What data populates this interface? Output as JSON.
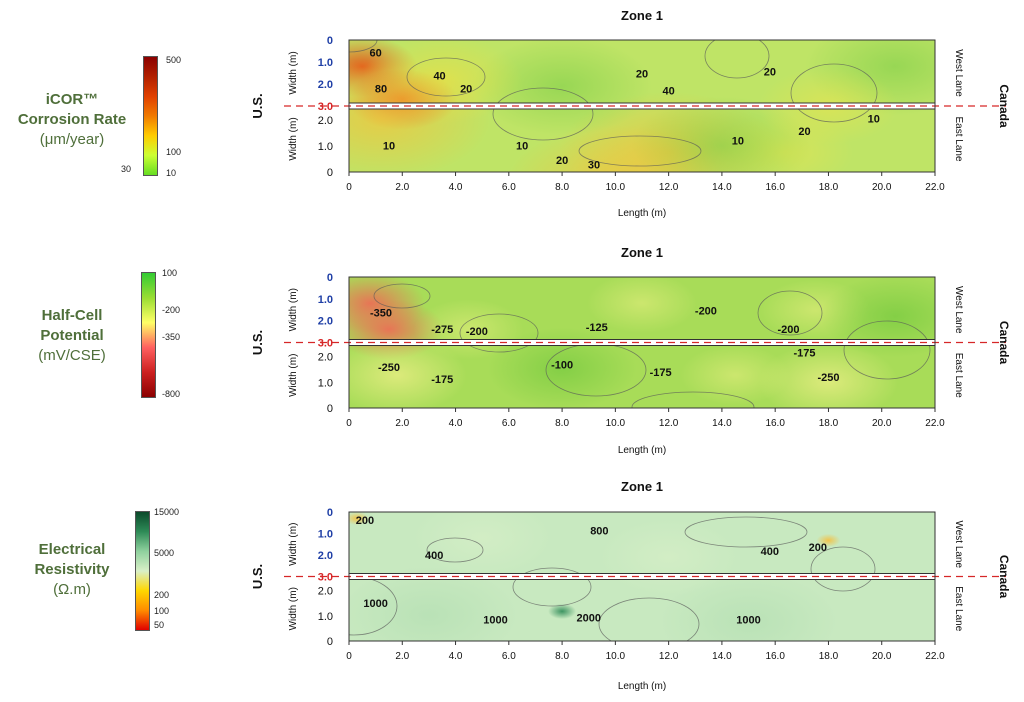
{
  "colors": {
    "legend_title": "#4f6f3a",
    "axis_blue": "#1f3fa6",
    "divider_red": "#d62728",
    "contour": "#5a5a5a"
  },
  "panels": [
    {
      "legend": {
        "title_lines": [
          "iCOR™",
          "Corrosion Rate"
        ],
        "unit": "(μm/year)",
        "ticks": [
          "500",
          "100",
          "10"
        ],
        "side_label": "30",
        "stops": [
          "#8b0000",
          "#b22000",
          "#e04000",
          "#f07a00",
          "#ffcc00",
          "#ccff33",
          "#66dd22"
        ]
      }
    },
    {
      "legend": {
        "title_lines": [
          "Half-Cell",
          "Potential"
        ],
        "unit": "(mV/CSE)",
        "ticks": [
          "100",
          "-200",
          "-350",
          "-800"
        ],
        "side_label": "",
        "stops": [
          "#33cc33",
          "#99dd33",
          "#ffff66",
          "#ff6060",
          "#cc2020",
          "#8b0000"
        ]
      }
    },
    {
      "legend": {
        "title_lines": [
          "Electrical",
          "Resistivity"
        ],
        "unit": "(Ω.m)",
        "ticks": [
          "15000",
          "5000",
          "200",
          "100",
          "50"
        ],
        "side_label": "",
        "stops": [
          "#0b4a2b",
          "#2e8b57",
          "#8fd19e",
          "#d9f0c8",
          "#ffd700",
          "#ff8c00",
          "#e00000"
        ]
      }
    }
  ],
  "chart_data": [
    {
      "type": "heatmap",
      "title": "Zone 1",
      "xlabel": "Length (m)",
      "ylabel": "Width (m)",
      "x_ticks": [
        "0",
        "2.0",
        "4.0",
        "6.0",
        "8.0",
        "10.0",
        "12.0",
        "14.0",
        "16.0",
        "18.0",
        "20.0",
        "22.0"
      ],
      "xlim": [
        0,
        22
      ],
      "west_y_ticks": [
        "0",
        "1.0",
        "2.0",
        "3.0"
      ],
      "east_y_ticks": [
        "2.0",
        "1.0",
        "0"
      ],
      "west_lane_label": "West Lane",
      "east_lane_label": "East Lane",
      "left_label": "U.S.",
      "right_label": "Canada",
      "contour_labels": [
        {
          "text": "60",
          "x": 1.0,
          "lane": "west",
          "w": 0.6
        },
        {
          "text": "80",
          "x": 1.2,
          "lane": "west",
          "w": 2.3
        },
        {
          "text": "40",
          "x": 3.4,
          "lane": "west",
          "w": 1.7
        },
        {
          "text": "20",
          "x": 4.4,
          "lane": "west",
          "w": 2.3
        },
        {
          "text": "20",
          "x": 11.0,
          "lane": "west",
          "w": 1.6
        },
        {
          "text": "40",
          "x": 12.0,
          "lane": "west",
          "w": 2.4
        },
        {
          "text": "20",
          "x": 15.8,
          "lane": "west",
          "w": 1.5
        },
        {
          "text": "10",
          "x": 1.5,
          "lane": "east",
          "w": 1.1
        },
        {
          "text": "10",
          "x": 6.5,
          "lane": "east",
          "w": 1.1
        },
        {
          "text": "20",
          "x": 8.0,
          "lane": "east",
          "w": 0.5
        },
        {
          "text": "30",
          "x": 9.2,
          "lane": "east",
          "w": 0.3
        },
        {
          "text": "10",
          "x": 14.6,
          "lane": "east",
          "w": 1.3
        },
        {
          "text": "20",
          "x": 17.1,
          "lane": "east",
          "w": 1.7
        },
        {
          "text": "10",
          "x": 19.7,
          "lane": "east",
          "w": 2.2
        }
      ]
    },
    {
      "type": "heatmap",
      "title": "Zone 1",
      "xlabel": "Length (m)",
      "ylabel": "Width (m)",
      "x_ticks": [
        "0",
        "2.0",
        "4.0",
        "6.0",
        "8.0",
        "10.0",
        "12.0",
        "14.0",
        "16.0",
        "18.0",
        "20.0",
        "22.0"
      ],
      "xlim": [
        0,
        22
      ],
      "west_y_ticks": [
        "0",
        "1.0",
        "2.0",
        "3.0"
      ],
      "east_y_ticks": [
        "2.0",
        "1.0",
        "0"
      ],
      "west_lane_label": "West Lane",
      "east_lane_label": "East Lane",
      "left_label": "U.S.",
      "right_label": "Canada",
      "contour_labels": [
        {
          "text": "-350",
          "x": 1.2,
          "lane": "west",
          "w": 1.7
        },
        {
          "text": "-275",
          "x": 3.5,
          "lane": "west",
          "w": 2.5
        },
        {
          "text": "-200",
          "x": 4.8,
          "lane": "west",
          "w": 2.6
        },
        {
          "text": "-125",
          "x": 9.3,
          "lane": "west",
          "w": 2.4
        },
        {
          "text": "-200",
          "x": 13.4,
          "lane": "west",
          "w": 1.6
        },
        {
          "text": "-200",
          "x": 16.5,
          "lane": "west",
          "w": 2.5
        },
        {
          "text": "-250",
          "x": 1.5,
          "lane": "east",
          "w": 1.7
        },
        {
          "text": "-175",
          "x": 3.5,
          "lane": "east",
          "w": 1.2
        },
        {
          "text": "-100",
          "x": 8.0,
          "lane": "east",
          "w": 1.8
        },
        {
          "text": "-175",
          "x": 11.7,
          "lane": "east",
          "w": 1.5
        },
        {
          "text": "-175",
          "x": 17.1,
          "lane": "east",
          "w": 2.3
        },
        {
          "text": "-250",
          "x": 18.0,
          "lane": "east",
          "w": 1.3
        }
      ]
    },
    {
      "type": "heatmap",
      "title": "Zone 1",
      "xlabel": "Length (m)",
      "ylabel": "Width (m)",
      "x_ticks": [
        "0",
        "2.0",
        "4.0",
        "6.0",
        "8.0",
        "10.0",
        "12.0",
        "14.0",
        "16.0",
        "18.0",
        "20.0",
        "22.0"
      ],
      "xlim": [
        0,
        22
      ],
      "west_y_ticks": [
        "0",
        "1.0",
        "2.0",
        "3.0"
      ],
      "east_y_ticks": [
        "2.0",
        "1.0",
        "0"
      ],
      "west_lane_label": "West Lane",
      "east_lane_label": "East Lane",
      "left_label": "U.S.",
      "right_label": "Canada",
      "contour_labels": [
        {
          "text": "200",
          "x": 0.6,
          "lane": "west",
          "w": 0.4
        },
        {
          "text": "400",
          "x": 3.2,
          "lane": "west",
          "w": 2.1
        },
        {
          "text": "800",
          "x": 9.4,
          "lane": "west",
          "w": 0.9
        },
        {
          "text": "400",
          "x": 15.8,
          "lane": "west",
          "w": 1.9
        },
        {
          "text": "200",
          "x": 17.6,
          "lane": "west",
          "w": 1.7
        },
        {
          "text": "1000",
          "x": 1.0,
          "lane": "east",
          "w": 1.6
        },
        {
          "text": "1000",
          "x": 5.5,
          "lane": "east",
          "w": 0.9
        },
        {
          "text": "2000",
          "x": 9.0,
          "lane": "east",
          "w": 1.0
        },
        {
          "text": "1000",
          "x": 15.0,
          "lane": "east",
          "w": 0.9
        }
      ]
    }
  ]
}
